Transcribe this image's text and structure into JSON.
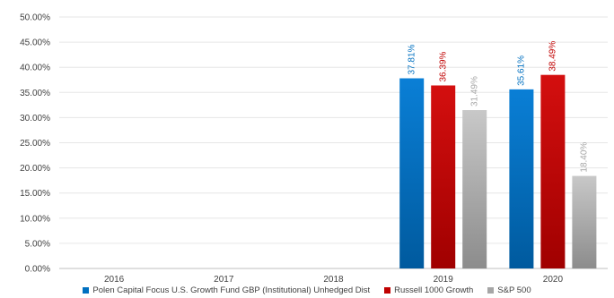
{
  "chart_data": {
    "type": "bar",
    "categories": [
      "2016",
      "2017",
      "2018",
      "2019",
      "2020"
    ],
    "series": [
      {
        "name": "Polen Capital Focus U.S. Growth Fund GBP (Institutional) Unhedged Dist",
        "color": "#0070C0",
        "values": [
          null,
          null,
          null,
          37.81,
          35.61
        ],
        "labels": [
          "",
          "",
          "",
          "37.81%",
          "35.61%"
        ]
      },
      {
        "name": "Russell 1000 Growth",
        "color": "#C00000",
        "values": [
          null,
          null,
          null,
          36.39,
          38.49
        ],
        "labels": [
          "",
          "",
          "",
          "36.39%",
          "38.49%"
        ]
      },
      {
        "name": "S&P 500",
        "color": "#A6A6A6",
        "values": [
          null,
          null,
          null,
          31.49,
          18.4
        ],
        "labels": [
          "",
          "",
          "",
          "31.49%",
          "18.40%"
        ]
      }
    ],
    "ylim": [
      0,
      50
    ],
    "yticks": [
      "0.00%",
      "5.00%",
      "10.00%",
      "15.00%",
      "20.00%",
      "25.00%",
      "30.00%",
      "35.00%",
      "40.00%",
      "45.00%",
      "50.00%"
    ],
    "grid": true,
    "legend_position": "bottom"
  }
}
